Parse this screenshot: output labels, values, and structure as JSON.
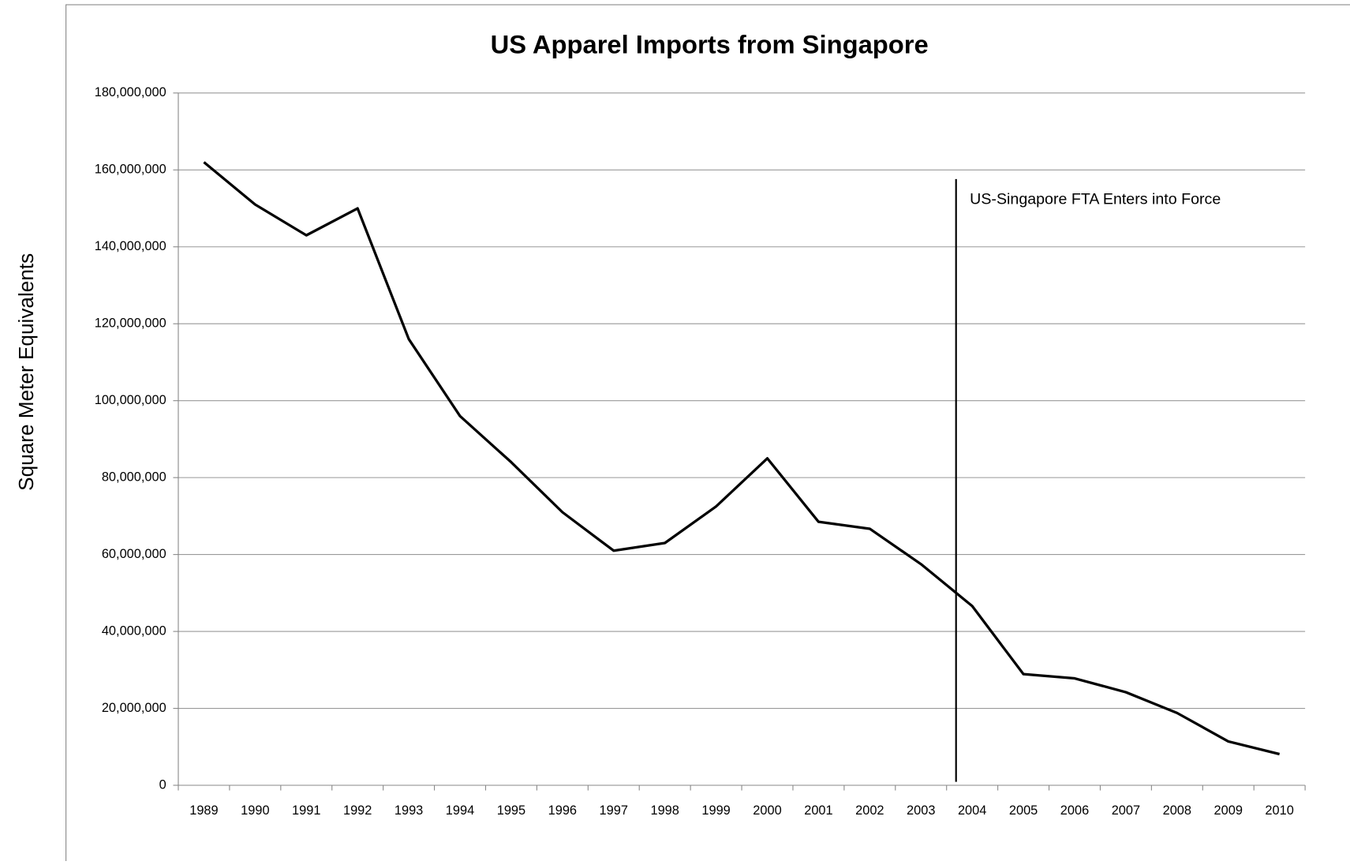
{
  "chart_data": {
    "type": "line",
    "title": "US Apparel Imports from Singapore",
    "y_label": "Square Meter Equivalents",
    "categories": [
      "1989",
      "1990",
      "1991",
      "1992",
      "1993",
      "1994",
      "1995",
      "1996",
      "1997",
      "1998",
      "1999",
      "2000",
      "2001",
      "2002",
      "2003",
      "2004",
      "2005",
      "2006",
      "2007",
      "2008",
      "2009",
      "2010"
    ],
    "series": [
      {
        "name": "US Apparel Imports from Singapore",
        "color": "#000000",
        "values": [
          162000000,
          151000000,
          143000000,
          150000000,
          116000000,
          96000000,
          84000000,
          71000000,
          61000000,
          63000000,
          72500000,
          85000000,
          68500000,
          66700000,
          57500000,
          46600000,
          28900000,
          27800000,
          24200000,
          18800000,
          11400000,
          8100000
        ]
      }
    ],
    "ylim": [
      0,
      180000000
    ],
    "yticks": [
      0,
      {
        "value": 20000000,
        "label": "20,000,000"
      },
      {
        "value": 40000000,
        "label": "40,000,000"
      },
      {
        "value": 60000000,
        "label": "60,000,000"
      },
      {
        "value": 80000000,
        "label": "80,000,000"
      },
      {
        "value": 100000000,
        "label": "100,000,000"
      },
      {
        "value": 120000000,
        "label": "120,000,000"
      },
      {
        "value": 140000000,
        "label": "140,000,000"
      },
      {
        "value": 160000000,
        "label": "160,000,000"
      },
      {
        "value": 180000000,
        "label": "180,000,000"
      }
    ],
    "grid": true,
    "annotations": [
      {
        "text": "US-Singapore FTA Enters into Force",
        "category": "2004"
      }
    ]
  }
}
